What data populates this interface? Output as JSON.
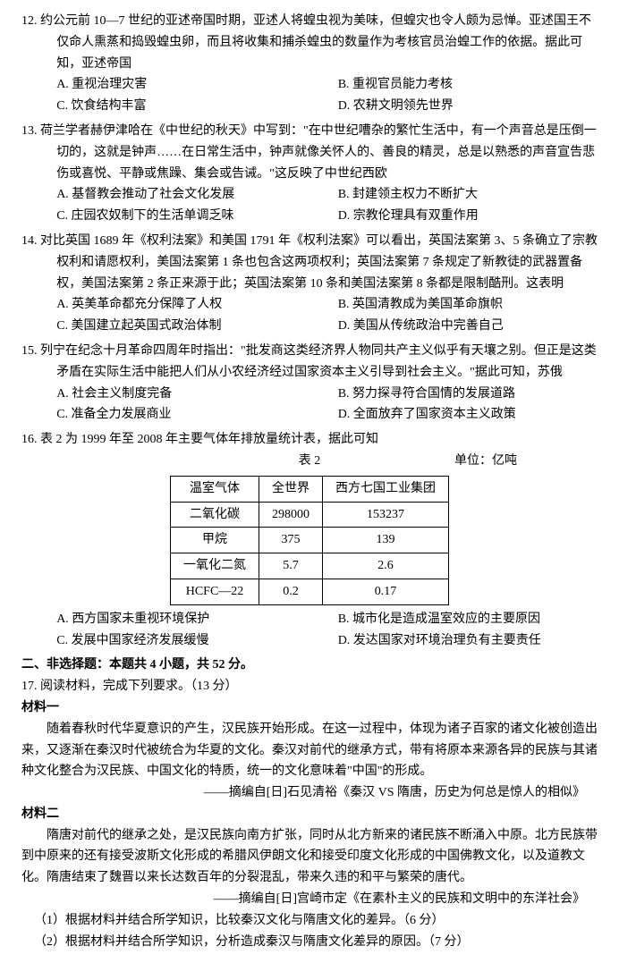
{
  "q12": {
    "num": "12.",
    "stem": "约公元前 10—7 世纪的亚述帝国时期，亚述人将蝗虫视为美味，但蝗灾也令人颇为忌惮。亚述国王不仅命人熏蒸和捣毁蝗虫卵，而且将收集和捕杀蝗虫的数量作为考核官员治蝗工作的依据。据此可知，亚述帝国",
    "A": "A. 重视治理灾害",
    "B": "B. 重视官员能力考核",
    "C": "C. 饮食结构丰富",
    "D": "D. 农耕文明领先世界"
  },
  "q13": {
    "num": "13.",
    "stem": "荷兰学者赫伊津哈在《中世纪的秋天》中写到：\"在中世纪嘈杂的繁忙生活中，有一个声音总是压倒一切的，这就是钟声……在日常生活中，钟声就像关怀人的、善良的精灵，总是以熟悉的声音宣告悲伤或喜悦、平静或焦躁、集会或告诫。\"这反映了中世纪西欧",
    "A": "A. 基督教会推动了社会文化发展",
    "B": "B. 封建领主权力不断扩大",
    "C": "C. 庄园农奴制下的生活单调乏味",
    "D": "D. 宗教伦理具有双重作用"
  },
  "q14": {
    "num": "14.",
    "stem": "对比英国 1689 年《权利法案》和美国 1791 年《权利法案》可以看出，英国法案第 3、5 条确立了宗教权利和请愿权利，美国法案第 1 条也包含这两项权利；英国法案第 7 条规定了新教徒的武器置备权，美国法案第 2 条正来源于此；英国法案第 10 条和美国法案第 8 条都是限制酷刑。这表明",
    "A": "A. 英美革命都充分保障了人权",
    "B": "B. 英国清教成为美国革命旗帜",
    "C": "C. 美国建立起英国式政治体制",
    "D": "D. 美国从传统政治中完善自己"
  },
  "q15": {
    "num": "15.",
    "stem": "列宁在纪念十月革命四周年时指出：\"批发商这类经济界人物同共产主义似乎有天壤之别。但正是这类矛盾在实际生活中能把人们从小农经济经过国家资本主义引导到社会主义。\"据此可知，苏俄",
    "A": "A. 社会主义制度完备",
    "B": "B. 努力探寻符合国情的发展道路",
    "C": "C. 准备全力发展商业",
    "D": "D. 全面放弃了国家资本主义政策"
  },
  "q16": {
    "num": "16.",
    "stem": "表 2 为 1999 年至 2008 年主要气体年排放量统计表，据此可知",
    "table_label": "表 2",
    "unit": "单位：亿吨",
    "headers": [
      "温室气体",
      "全世界",
      "西方七国工业集团"
    ],
    "rows": [
      [
        "二氧化碳",
        "298000",
        "153237"
      ],
      [
        "甲烷",
        "375",
        "139"
      ],
      [
        "一氧化二氮",
        "5.7",
        "2.6"
      ],
      [
        "HCFC—22",
        "0.2",
        "0.17"
      ]
    ],
    "A": "A. 西方国家未重视环境保护",
    "B": "B. 城市化是造成温室效应的主要原因",
    "C": "C. 发展中国家经济发展缓慢",
    "D": "D. 发达国家对环境治理负有主要责任"
  },
  "section2": {
    "title": "二、非选择题：本题共 4 小题，共 52 分。",
    "q17_head": "17. 阅读材料，完成下列要求。（13 分）",
    "m1_title": "材料一",
    "m1_body": "随着春秋时代华夏意识的产生，汉民族开始形成。在这一过程中，体现为诸子百家的诸文化被创造出来，又逐渐在秦汉时代被统合为华夏的文化。秦汉对前代的继承方式，带有将原本来源各异的民族与其诸种文化整合为汉民族、中国文化的特质，统一的文化意味着\"中国\"的形成。",
    "m1_src": "——摘编自[日]石见清裕《秦汉 VS 隋唐，历史为何总是惊人的相似》",
    "m2_title": "材料二",
    "m2_body": "隋唐对前代的继承之处，是汉民族向南方扩张，同时从北方新来的诸民族不断涌入中原。北方民族带到中原来的还有接受波斯文化形成的希腊风伊朗文化和接受印度文化形成的中国佛教文化，以及道教文化。隋唐结束了魏晋以来长达数百年的分裂混乱，带来久违的和平与繁荣的唐代。",
    "m2_src": "——摘编自[日]宫崎市定《在素朴主义的民族和文明中的东洋社会》",
    "sub1": "（1）根据材料并结合所学知识，比较秦汉文化与隋唐文化的差异。（6 分）",
    "sub2": "（2）根据材料并结合所学知识，分析造成秦汉与隋唐文化差异的原因。（7 分）"
  }
}
